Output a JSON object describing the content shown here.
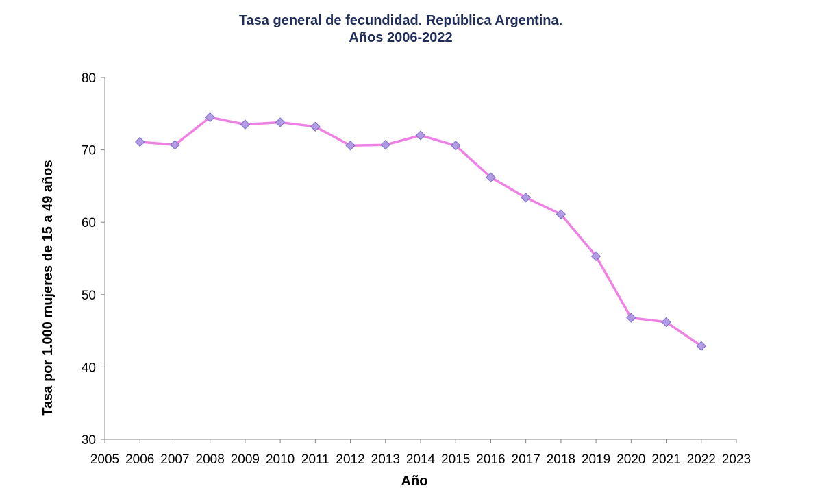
{
  "chart_data": {
    "type": "line",
    "title_line1": "Tasa general de fecundidad. República Argentina.",
    "title_line2": "Años 2006-2022",
    "xlabel": "Año",
    "ylabel": "Tasa por 1.000 mujeres de 15 a 49 años",
    "xlim": [
      2005,
      2023
    ],
    "ylim": [
      30,
      80
    ],
    "x_ticks": [
      2005,
      2006,
      2007,
      2008,
      2009,
      2010,
      2011,
      2012,
      2013,
      2014,
      2015,
      2016,
      2017,
      2018,
      2019,
      2020,
      2021,
      2022,
      2023
    ],
    "y_ticks": [
      30,
      40,
      50,
      60,
      70,
      80
    ],
    "series": [
      {
        "name": "Tasa general de fecundidad",
        "x": [
          2006,
          2007,
          2008,
          2009,
          2010,
          2011,
          2012,
          2013,
          2014,
          2015,
          2016,
          2017,
          2018,
          2019,
          2020,
          2021,
          2022
        ],
        "values": [
          71.1,
          70.7,
          74.5,
          73.5,
          73.8,
          73.2,
          70.6,
          70.7,
          72.0,
          70.6,
          66.2,
          63.4,
          61.1,
          55.3,
          46.8,
          46.2,
          42.9
        ]
      }
    ],
    "colors": {
      "line": "#ee82e4",
      "marker_fill": "#b49be6",
      "marker_stroke": "#7a6fc8",
      "axis": "#888888"
    }
  }
}
